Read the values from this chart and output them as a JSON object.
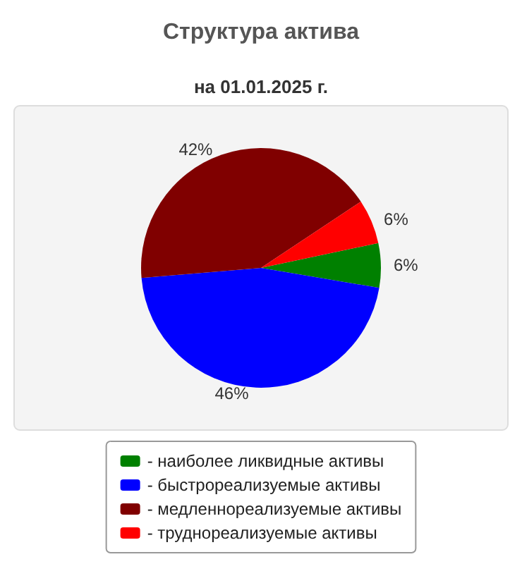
{
  "chart_data": {
    "type": "pie",
    "title": "Структура актива",
    "subtitle": "на 01.01.2025 г.",
    "categories": [
      "- наиболее ликвидные активы",
      "- быстрореализуемые активы",
      "- медленнореализуемые активы",
      "- труднореализуемые активы"
    ],
    "values": [
      6,
      46,
      42,
      6
    ],
    "value_labels": [
      "6%",
      "46%",
      "42%",
      "6%"
    ],
    "colors": [
      "#008000",
      "#0000ff",
      "#800000",
      "#ff0000"
    ],
    "legend": "bottom"
  }
}
